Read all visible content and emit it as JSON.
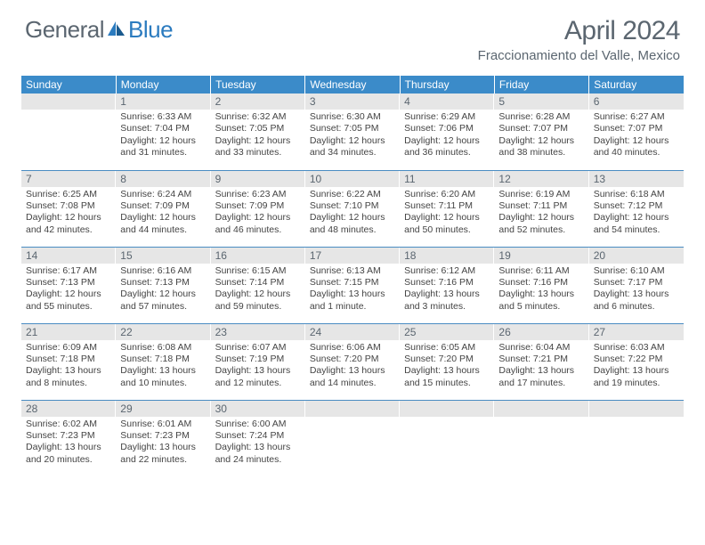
{
  "brand": {
    "part1": "General",
    "part2": "Blue"
  },
  "title": "April 2024",
  "location": "Fraccionamiento del Valle, Mexico",
  "colors": {
    "header_bg": "#3b8bc9",
    "stripe_bg": "#e6e6e6",
    "rule": "#4a8cc2",
    "text_muted": "#5b6670",
    "brand_blue": "#2b7bbf"
  },
  "day_headers": [
    "Sunday",
    "Monday",
    "Tuesday",
    "Wednesday",
    "Thursday",
    "Friday",
    "Saturday"
  ],
  "weeks": [
    [
      {
        "n": "",
        "lines": []
      },
      {
        "n": "1",
        "lines": [
          "Sunrise: 6:33 AM",
          "Sunset: 7:04 PM",
          "Daylight: 12 hours",
          "and 31 minutes."
        ]
      },
      {
        "n": "2",
        "lines": [
          "Sunrise: 6:32 AM",
          "Sunset: 7:05 PM",
          "Daylight: 12 hours",
          "and 33 minutes."
        ]
      },
      {
        "n": "3",
        "lines": [
          "Sunrise: 6:30 AM",
          "Sunset: 7:05 PM",
          "Daylight: 12 hours",
          "and 34 minutes."
        ]
      },
      {
        "n": "4",
        "lines": [
          "Sunrise: 6:29 AM",
          "Sunset: 7:06 PM",
          "Daylight: 12 hours",
          "and 36 minutes."
        ]
      },
      {
        "n": "5",
        "lines": [
          "Sunrise: 6:28 AM",
          "Sunset: 7:07 PM",
          "Daylight: 12 hours",
          "and 38 minutes."
        ]
      },
      {
        "n": "6",
        "lines": [
          "Sunrise: 6:27 AM",
          "Sunset: 7:07 PM",
          "Daylight: 12 hours",
          "and 40 minutes."
        ]
      }
    ],
    [
      {
        "n": "7",
        "lines": [
          "Sunrise: 6:25 AM",
          "Sunset: 7:08 PM",
          "Daylight: 12 hours",
          "and 42 minutes."
        ]
      },
      {
        "n": "8",
        "lines": [
          "Sunrise: 6:24 AM",
          "Sunset: 7:09 PM",
          "Daylight: 12 hours",
          "and 44 minutes."
        ]
      },
      {
        "n": "9",
        "lines": [
          "Sunrise: 6:23 AM",
          "Sunset: 7:09 PM",
          "Daylight: 12 hours",
          "and 46 minutes."
        ]
      },
      {
        "n": "10",
        "lines": [
          "Sunrise: 6:22 AM",
          "Sunset: 7:10 PM",
          "Daylight: 12 hours",
          "and 48 minutes."
        ]
      },
      {
        "n": "11",
        "lines": [
          "Sunrise: 6:20 AM",
          "Sunset: 7:11 PM",
          "Daylight: 12 hours",
          "and 50 minutes."
        ]
      },
      {
        "n": "12",
        "lines": [
          "Sunrise: 6:19 AM",
          "Sunset: 7:11 PM",
          "Daylight: 12 hours",
          "and 52 minutes."
        ]
      },
      {
        "n": "13",
        "lines": [
          "Sunrise: 6:18 AM",
          "Sunset: 7:12 PM",
          "Daylight: 12 hours",
          "and 54 minutes."
        ]
      }
    ],
    [
      {
        "n": "14",
        "lines": [
          "Sunrise: 6:17 AM",
          "Sunset: 7:13 PM",
          "Daylight: 12 hours",
          "and 55 minutes."
        ]
      },
      {
        "n": "15",
        "lines": [
          "Sunrise: 6:16 AM",
          "Sunset: 7:13 PM",
          "Daylight: 12 hours",
          "and 57 minutes."
        ]
      },
      {
        "n": "16",
        "lines": [
          "Sunrise: 6:15 AM",
          "Sunset: 7:14 PM",
          "Daylight: 12 hours",
          "and 59 minutes."
        ]
      },
      {
        "n": "17",
        "lines": [
          "Sunrise: 6:13 AM",
          "Sunset: 7:15 PM",
          "Daylight: 13 hours",
          "and 1 minute."
        ]
      },
      {
        "n": "18",
        "lines": [
          "Sunrise: 6:12 AM",
          "Sunset: 7:16 PM",
          "Daylight: 13 hours",
          "and 3 minutes."
        ]
      },
      {
        "n": "19",
        "lines": [
          "Sunrise: 6:11 AM",
          "Sunset: 7:16 PM",
          "Daylight: 13 hours",
          "and 5 minutes."
        ]
      },
      {
        "n": "20",
        "lines": [
          "Sunrise: 6:10 AM",
          "Sunset: 7:17 PM",
          "Daylight: 13 hours",
          "and 6 minutes."
        ]
      }
    ],
    [
      {
        "n": "21",
        "lines": [
          "Sunrise: 6:09 AM",
          "Sunset: 7:18 PM",
          "Daylight: 13 hours",
          "and 8 minutes."
        ]
      },
      {
        "n": "22",
        "lines": [
          "Sunrise: 6:08 AM",
          "Sunset: 7:18 PM",
          "Daylight: 13 hours",
          "and 10 minutes."
        ]
      },
      {
        "n": "23",
        "lines": [
          "Sunrise: 6:07 AM",
          "Sunset: 7:19 PM",
          "Daylight: 13 hours",
          "and 12 minutes."
        ]
      },
      {
        "n": "24",
        "lines": [
          "Sunrise: 6:06 AM",
          "Sunset: 7:20 PM",
          "Daylight: 13 hours",
          "and 14 minutes."
        ]
      },
      {
        "n": "25",
        "lines": [
          "Sunrise: 6:05 AM",
          "Sunset: 7:20 PM",
          "Daylight: 13 hours",
          "and 15 minutes."
        ]
      },
      {
        "n": "26",
        "lines": [
          "Sunrise: 6:04 AM",
          "Sunset: 7:21 PM",
          "Daylight: 13 hours",
          "and 17 minutes."
        ]
      },
      {
        "n": "27",
        "lines": [
          "Sunrise: 6:03 AM",
          "Sunset: 7:22 PM",
          "Daylight: 13 hours",
          "and 19 minutes."
        ]
      }
    ],
    [
      {
        "n": "28",
        "lines": [
          "Sunrise: 6:02 AM",
          "Sunset: 7:23 PM",
          "Daylight: 13 hours",
          "and 20 minutes."
        ]
      },
      {
        "n": "29",
        "lines": [
          "Sunrise: 6:01 AM",
          "Sunset: 7:23 PM",
          "Daylight: 13 hours",
          "and 22 minutes."
        ]
      },
      {
        "n": "30",
        "lines": [
          "Sunrise: 6:00 AM",
          "Sunset: 7:24 PM",
          "Daylight: 13 hours",
          "and 24 minutes."
        ]
      },
      {
        "n": "",
        "lines": []
      },
      {
        "n": "",
        "lines": []
      },
      {
        "n": "",
        "lines": []
      },
      {
        "n": "",
        "lines": []
      }
    ]
  ]
}
